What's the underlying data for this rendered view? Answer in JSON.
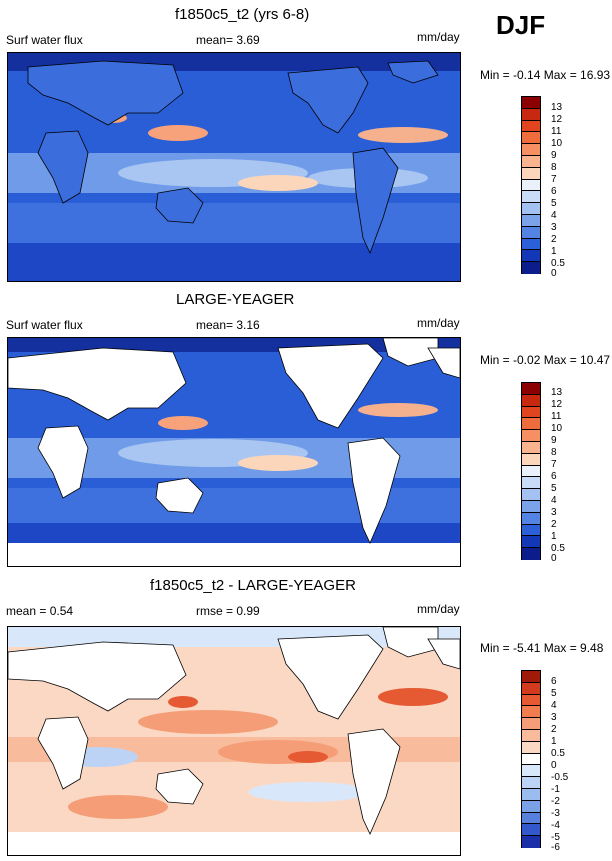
{
  "header": {
    "season": "DJF"
  },
  "panels": [
    {
      "title": "f1850c5_t2 (yrs 6-8)",
      "left_label": "Surf water flux",
      "mean_text": "mean=   3.69",
      "units": "mm/day",
      "minmax": "Min =  -0.14 Max =  16.93",
      "colorbar_labels": [
        "13",
        "12",
        "11",
        "10",
        "9",
        "8",
        "7",
        "6",
        "5",
        "4",
        "3",
        "2",
        "1",
        "0.5",
        "0"
      ],
      "colorbar_colors": [
        "#8b0000",
        "#c8280f",
        "#e0451f",
        "#ef6d3c",
        "#f69063",
        "#f9b48f",
        "#fbd6bb",
        "#eaf1fb",
        "#c8dbf7",
        "#a4c2f1",
        "#7aa3ea",
        "#5484e3",
        "#2c60d8",
        "#1238b8",
        "#0a1d8a"
      ]
    },
    {
      "title": "LARGE-YEAGER",
      "left_label": "Surf water flux",
      "mean_text": "mean=   3.16",
      "units": "mm/day",
      "minmax": "Min =  -0.02 Max =  10.47",
      "colorbar_labels": [
        "13",
        "12",
        "11",
        "10",
        "9",
        "8",
        "7",
        "6",
        "5",
        "4",
        "3",
        "2",
        "1",
        "0.5",
        "0"
      ],
      "colorbar_colors": [
        "#8b0000",
        "#c8280f",
        "#e0451f",
        "#ef6d3c",
        "#f69063",
        "#f9b48f",
        "#fbd6bb",
        "#eaf1fb",
        "#c8dbf7",
        "#a4c2f1",
        "#7aa3ea",
        "#5484e3",
        "#2c60d8",
        "#1238b8",
        "#0a1d8a"
      ]
    },
    {
      "title": "f1850c5_t2 - LARGE-YEAGER",
      "left_label": "mean =   0.54",
      "mean_text": "rmse =   0.99",
      "units": "mm/day",
      "minmax": "Min =  -5.41 Max =   9.48",
      "colorbar_labels": [
        "6",
        "5",
        "4",
        "3",
        "2",
        "1",
        "0.5",
        "0",
        "-0.5",
        "-1",
        "-2",
        "-3",
        "-4",
        "-5",
        "-6"
      ],
      "colorbar_colors": [
        "#a01a0a",
        "#d23b1e",
        "#e55a32",
        "#f07c4f",
        "#f59d76",
        "#f8bb9b",
        "#fbd8c4",
        "#ffffff",
        "#d9e7fa",
        "#bcd3f5",
        "#9bbcee",
        "#7aa1e6",
        "#5780dd",
        "#3358cc",
        "#1a2fa8"
      ]
    }
  ]
}
